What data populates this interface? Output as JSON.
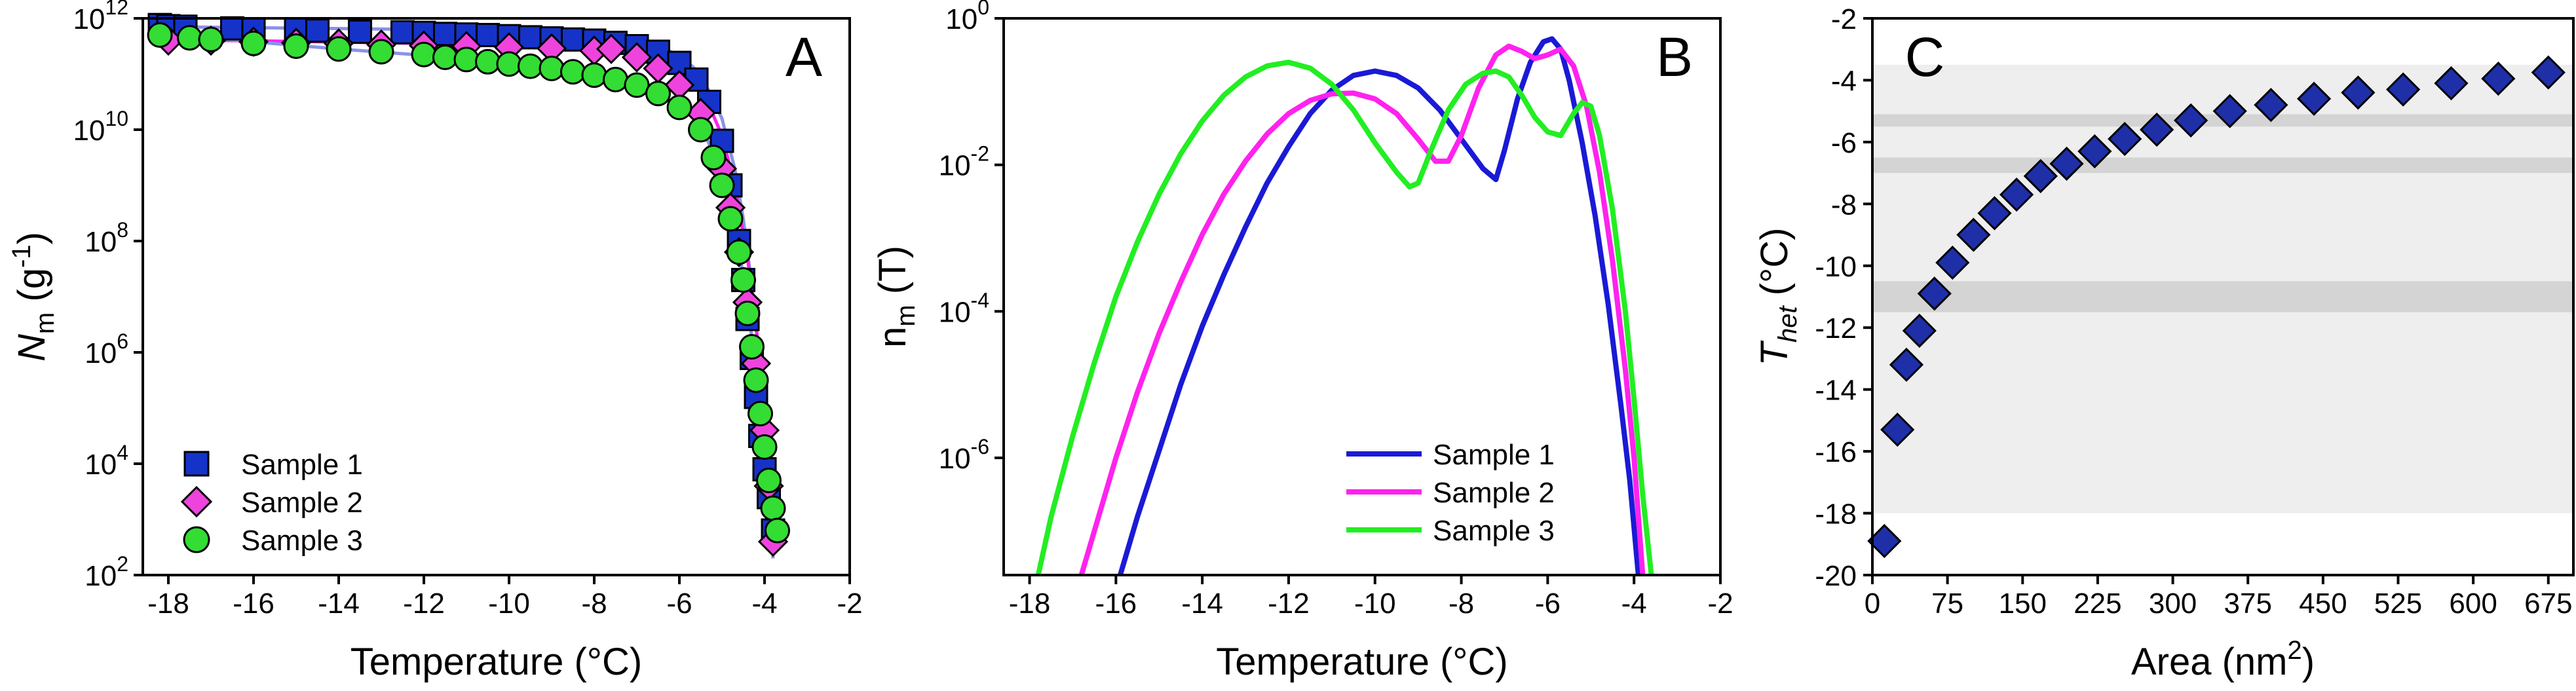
{
  "colors": {
    "sample1": "#1a1ad6",
    "sample2": "#ff22ee",
    "sample3": "#22ee22",
    "sample1_fill": "#1533c8",
    "sample2_fill": "#ee44dd",
    "sample3_fill": "#33dd33",
    "fit_line": "#8a93e8",
    "diamond_fill": "#1f2fa8",
    "band_light": "#eeeeee",
    "band_dark": "#d4d4d4"
  },
  "chart_data": [
    {
      "panel_letter": "A",
      "type": "scatter",
      "xlabel": "Temperature (°C)",
      "ylabel": {
        "main": "N",
        "sub": "m",
        "unit_open": " (g",
        "unit_sup": "-1",
        "unit_close": ")"
      },
      "xlim": [
        -18.6,
        -2
      ],
      "ylim_log10": [
        2,
        12
      ],
      "y_scale": "log",
      "x_ticks": [
        -18,
        -16,
        -14,
        -12,
        -10,
        -8,
        -6,
        -4,
        -2
      ],
      "y_ticks": [
        {
          "base": "10",
          "exp": "2"
        },
        {
          "base": "10",
          "exp": "4"
        },
        {
          "base": "10",
          "exp": "6"
        },
        {
          "base": "10",
          "exp": "8"
        },
        {
          "base": "10",
          "exp": "10"
        },
        {
          "base": "10",
          "exp": "12"
        }
      ],
      "y_tick_values_log10": [
        2,
        4,
        6,
        8,
        10,
        12
      ],
      "legend_position": "bottom-left",
      "series": [
        {
          "name": "Sample 1",
          "marker": "square",
          "color_key": "sample1_fill",
          "x": [
            -18.2,
            -18.0,
            -17.6,
            -16.5,
            -16.0,
            -15.0,
            -14.5,
            -13.5,
            -12.5,
            -12.0,
            -11.5,
            -11.0,
            -10.5,
            -10.0,
            -9.5,
            -9.0,
            -8.5,
            -8.0,
            -7.5,
            -7.0,
            -6.5,
            -6.0,
            -5.6,
            -5.3,
            -5.0,
            -4.8,
            -4.6,
            -4.5,
            -4.4,
            -4.3,
            -4.2,
            -4.1,
            -4.0,
            -3.9,
            -3.8
          ],
          "y_log10": [
            11.88,
            11.86,
            11.85,
            11.82,
            11.8,
            11.8,
            11.78,
            11.76,
            11.75,
            11.74,
            11.72,
            11.71,
            11.7,
            11.68,
            11.66,
            11.64,
            11.62,
            11.6,
            11.56,
            11.5,
            11.4,
            11.2,
            10.9,
            10.5,
            9.8,
            9.0,
            8.0,
            7.3,
            6.6,
            5.9,
            5.2,
            4.5,
            3.9,
            3.4,
            2.8
          ]
        },
        {
          "name": "Sample 2",
          "marker": "diamond",
          "color_key": "sample2_fill",
          "x": [
            -18.0,
            -17.0,
            -16.0,
            -15.0,
            -14.0,
            -13.0,
            -12.0,
            -11.0,
            -10.0,
            -9.0,
            -8.0,
            -7.6,
            -7.0,
            -6.5,
            -6.0,
            -5.5,
            -5.0,
            -4.8,
            -4.6,
            -4.4,
            -4.2,
            -4.0,
            -3.9,
            -3.8
          ],
          "y_log10": [
            11.6,
            11.6,
            11.58,
            11.56,
            11.55,
            11.53,
            11.51,
            11.5,
            11.48,
            11.46,
            11.42,
            11.45,
            11.3,
            11.1,
            10.8,
            10.3,
            9.3,
            8.6,
            7.8,
            6.9,
            5.8,
            4.6,
            3.6,
            2.6
          ]
        },
        {
          "name": "Sample 3",
          "marker": "circle",
          "color_key": "sample3_fill",
          "x": [
            -18.2,
            -17.5,
            -17.0,
            -16.0,
            -15.0,
            -14.0,
            -13.0,
            -12.0,
            -11.5,
            -11.0,
            -10.5,
            -10.0,
            -9.5,
            -9.0,
            -8.5,
            -8.0,
            -7.5,
            -7.0,
            -6.5,
            -6.0,
            -5.5,
            -5.2,
            -5.0,
            -4.8,
            -4.6,
            -4.5,
            -4.4,
            -4.3,
            -4.2,
            -4.1,
            -4.0,
            -3.9,
            -3.8,
            -3.7
          ],
          "y_log10": [
            11.7,
            11.65,
            11.62,
            11.55,
            11.5,
            11.45,
            11.4,
            11.35,
            11.3,
            11.26,
            11.22,
            11.18,
            11.14,
            11.1,
            11.04,
            10.98,
            10.9,
            10.8,
            10.65,
            10.4,
            10.0,
            9.5,
            9.0,
            8.4,
            7.8,
            7.3,
            6.7,
            6.1,
            5.5,
            4.9,
            4.3,
            3.7,
            3.2,
            2.8
          ]
        }
      ],
      "fit_lines": [
        {
          "color_key": "fit_line",
          "x": [
            -18.2,
            -12.0,
            -8.0,
            -7.0,
            -6.0,
            -5.5,
            -5.0,
            -4.7,
            -4.5,
            -4.3,
            -4.1,
            -3.9,
            -3.8
          ],
          "y_log10": [
            11.85,
            11.8,
            11.7,
            11.6,
            11.35,
            11.0,
            10.2,
            9.3,
            8.4,
            7.2,
            5.7,
            3.6,
            2.3
          ]
        },
        {
          "color_key": "sample2",
          "x": [
            -18.2,
            -12.0,
            -8.0,
            -7.0,
            -6.0,
            -5.4,
            -5.0,
            -4.7,
            -4.4,
            -4.2,
            -4.0,
            -3.8
          ],
          "y_log10": [
            11.62,
            11.55,
            11.45,
            11.35,
            11.05,
            10.6,
            9.9,
            9.0,
            7.7,
            6.5,
            4.9,
            2.4
          ]
        },
        {
          "color_key": "fit_line",
          "x": [
            -18.2,
            -14.0,
            -11.0,
            -9.0,
            -8.0,
            -7.0,
            -6.0,
            -5.5,
            -5.0,
            -4.7,
            -4.4,
            -4.1,
            -3.9,
            -3.8
          ],
          "y_log10": [
            11.72,
            11.45,
            11.28,
            11.12,
            11.0,
            10.8,
            10.45,
            10.1,
            9.2,
            8.3,
            6.9,
            5.0,
            3.4,
            2.3
          ]
        }
      ]
    },
    {
      "panel_letter": "B",
      "type": "line",
      "xlabel": "Temperature (°C)",
      "ylabel": {
        "main": "n",
        "sub": "m",
        "unit_open": " (T)",
        "unit_sup": "",
        "unit_close": ""
      },
      "xlim": [
        -18.6,
        -2
      ],
      "ylim_log10": [
        -7.6,
        0
      ],
      "y_scale": "log",
      "x_ticks": [
        -18,
        -16,
        -14,
        -12,
        -10,
        -8,
        -6,
        -4,
        -2
      ],
      "y_ticks": [
        {
          "base": "10",
          "exp": "-6"
        },
        {
          "base": "10",
          "exp": "-4"
        },
        {
          "base": "10",
          "exp": "-2"
        },
        {
          "base": "10",
          "exp": "0"
        }
      ],
      "y_tick_values_log10": [
        -6,
        -4,
        -2,
        0
      ],
      "legend_position": "bottom-right",
      "series": [
        {
          "name": "Sample 1",
          "color_key": "sample1",
          "x": [
            -15.9,
            -15.5,
            -15.0,
            -14.5,
            -14.0,
            -13.5,
            -13.0,
            -12.5,
            -12.0,
            -11.5,
            -11.0,
            -10.5,
            -10.0,
            -9.5,
            -9.0,
            -8.5,
            -8.0,
            -7.5,
            -7.2,
            -7.0,
            -6.7,
            -6.4,
            -6.1,
            -5.9,
            -5.7,
            -5.5,
            -5.2,
            -4.9,
            -4.6,
            -4.3,
            -4.1,
            -3.9
          ],
          "y_log10": [
            -7.6,
            -6.8,
            -5.9,
            -5.0,
            -4.2,
            -3.5,
            -2.85,
            -2.25,
            -1.75,
            -1.3,
            -0.98,
            -0.78,
            -0.72,
            -0.78,
            -0.95,
            -1.25,
            -1.65,
            -2.05,
            -2.2,
            -1.8,
            -1.1,
            -0.6,
            -0.32,
            -0.28,
            -0.42,
            -0.85,
            -1.7,
            -2.7,
            -3.9,
            -5.3,
            -6.3,
            -7.6
          ]
        },
        {
          "name": "Sample 2",
          "color_key": "sample2",
          "x": [
            -16.8,
            -16.5,
            -16.0,
            -15.5,
            -15.0,
            -14.5,
            -14.0,
            -13.5,
            -13.0,
            -12.5,
            -12.0,
            -11.5,
            -11.0,
            -10.5,
            -10.0,
            -9.5,
            -9.0,
            -8.6,
            -8.3,
            -8.0,
            -7.6,
            -7.2,
            -6.9,
            -6.6,
            -6.3,
            -6.0,
            -5.7,
            -5.4,
            -5.1,
            -4.8,
            -4.5,
            -4.2,
            -4.0,
            -3.8
          ],
          "y_log10": [
            -7.6,
            -7.0,
            -6.0,
            -5.1,
            -4.3,
            -3.6,
            -2.95,
            -2.4,
            -1.95,
            -1.58,
            -1.3,
            -1.12,
            -1.03,
            -1.02,
            -1.1,
            -1.3,
            -1.65,
            -1.95,
            -1.95,
            -1.6,
            -0.95,
            -0.5,
            -0.38,
            -0.45,
            -0.55,
            -0.5,
            -0.42,
            -0.65,
            -1.2,
            -2.1,
            -3.3,
            -4.8,
            -6.0,
            -7.6
          ]
        },
        {
          "name": "Sample 3",
          "color_key": "sample3",
          "x": [
            -17.8,
            -17.5,
            -17.0,
            -16.5,
            -16.0,
            -15.5,
            -15.0,
            -14.5,
            -14.0,
            -13.5,
            -13.0,
            -12.5,
            -12.0,
            -11.5,
            -11.0,
            -10.5,
            -10.0,
            -9.5,
            -9.2,
            -9.0,
            -8.7,
            -8.3,
            -7.9,
            -7.5,
            -7.2,
            -6.9,
            -6.6,
            -6.3,
            -6.0,
            -5.7,
            -5.4,
            -5.2,
            -5.0,
            -4.8,
            -4.5,
            -4.2,
            -4.0,
            -3.8,
            -3.6
          ],
          "y_log10": [
            -7.6,
            -6.8,
            -5.7,
            -4.7,
            -3.8,
            -3.05,
            -2.4,
            -1.85,
            -1.4,
            -1.05,
            -0.8,
            -0.65,
            -0.6,
            -0.68,
            -0.9,
            -1.25,
            -1.7,
            -2.1,
            -2.3,
            -2.25,
            -1.8,
            -1.25,
            -0.9,
            -0.75,
            -0.72,
            -0.8,
            -1.05,
            -1.35,
            -1.55,
            -1.6,
            -1.3,
            -1.15,
            -1.2,
            -1.6,
            -2.6,
            -4.0,
            -5.2,
            -6.5,
            -7.6
          ]
        }
      ]
    },
    {
      "panel_letter": "C",
      "type": "scatter",
      "xlabel": {
        "main": "Area (nm",
        "sup": "2",
        "close": ")"
      },
      "ylabel": {
        "main": "T",
        "sub": "het",
        "unit": " (°C)"
      },
      "xlim": [
        0,
        700
      ],
      "ylim": [
        -20,
        -2
      ],
      "x_ticks": [
        0,
        75,
        150,
        225,
        300,
        375,
        450,
        525,
        600,
        675
      ],
      "y_ticks": [
        -20,
        -18,
        -16,
        -14,
        -12,
        -10,
        -8,
        -6,
        -4,
        -2
      ],
      "bands": [
        {
          "y0": -18,
          "y1": -3.5,
          "color_key": "band_light"
        },
        {
          "y0": -11.5,
          "y1": -10.5,
          "color_key": "band_dark"
        },
        {
          "y0": -7.0,
          "y1": -6.5,
          "color_key": "band_dark"
        },
        {
          "y0": -5.5,
          "y1": -5.1,
          "color_key": "band_dark"
        }
      ],
      "series": [
        {
          "marker": "diamond",
          "color_key": "diamond_fill",
          "x": [
            12,
            25,
            34,
            47,
            62,
            80,
            101,
            122,
            144,
            168,
            194,
            222,
            252,
            284,
            318,
            357,
            398,
            441,
            485,
            530,
            578,
            625,
            675
          ],
          "y": [
            -18.9,
            -15.3,
            -13.2,
            -12.1,
            -10.9,
            -9.9,
            -9.0,
            -8.3,
            -7.7,
            -7.1,
            -6.7,
            -6.3,
            -5.9,
            -5.6,
            -5.3,
            -5.0,
            -4.8,
            -4.6,
            -4.4,
            -4.3,
            -4.1,
            -3.95,
            -3.75
          ]
        }
      ]
    }
  ]
}
